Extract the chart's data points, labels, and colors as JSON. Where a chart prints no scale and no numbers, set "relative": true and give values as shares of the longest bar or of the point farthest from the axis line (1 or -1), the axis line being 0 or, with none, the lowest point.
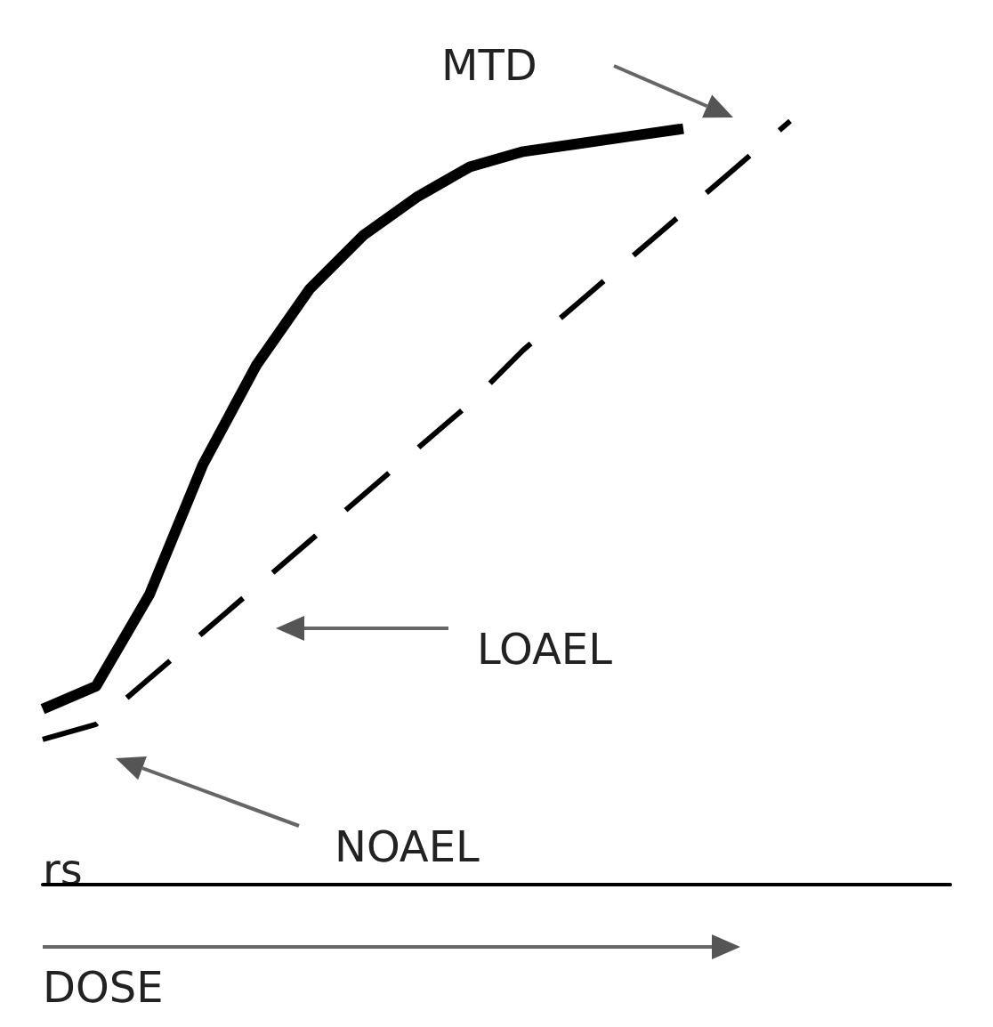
{
  "chart_data": {
    "type": "line",
    "relative": true,
    "xlabel": "DOSE",
    "categories": [
      null,
      null,
      null,
      null,
      null,
      null,
      null,
      null,
      null,
      null,
      null,
      null,
      null,
      null,
      null,
      null,
      null,
      null
    ],
    "series": [
      {
        "color": "#000000",
        "line_style": "solid",
        "values": [
          0.23,
          0.26,
          0.38,
          0.55,
          0.68,
          0.78,
          0.85,
          0.9,
          0.94,
          0.96,
          0.97,
          0.98,
          0.99,
          null,
          null,
          null,
          null,
          null
        ]
      },
      {
        "color": "#000000",
        "line_style": "dashed",
        "values": [
          0.19,
          0.21,
          0.27,
          0.33,
          0.39,
          0.45,
          0.51,
          0.57,
          0.63,
          0.7,
          0.76,
          0.82,
          0.88,
          0.94,
          1.0,
          null,
          null,
          null
        ]
      }
    ],
    "annotations": [
      "MTD",
      "LOAEL",
      "NOAEL",
      "rs"
    ]
  }
}
